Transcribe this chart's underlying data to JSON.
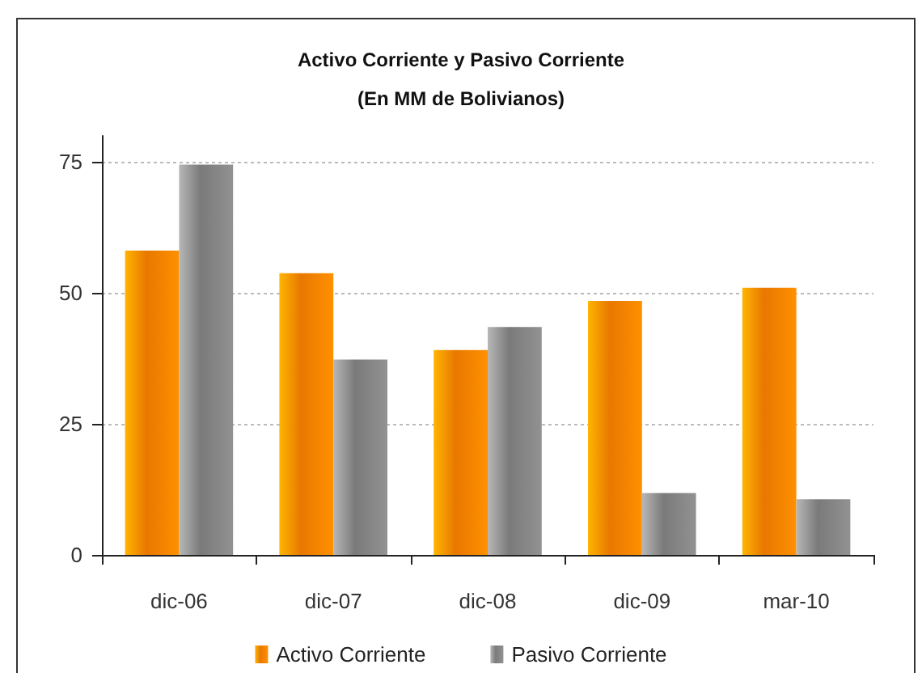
{
  "chart_data": {
    "type": "bar",
    "title": "Activo Corriente y Pasivo Corriente",
    "subtitle": "(En MM de Bolivianos)",
    "categories": [
      "dic-06",
      "dic-07",
      "dic-08",
      "dic-09",
      "mar-10"
    ],
    "series": [
      {
        "name": "Activo Corriente",
        "color": "#e87800",
        "values": [
          58.1,
          53.8,
          39.1,
          48.5,
          51.0
        ]
      },
      {
        "name": "Pasivo Corriente",
        "color": "#7a7a7a",
        "values": [
          74.5,
          37.3,
          43.5,
          11.8,
          10.6
        ]
      }
    ],
    "ylim": [
      0,
      80
    ],
    "yticks": [
      0,
      25,
      50,
      75
    ],
    "grid": "y",
    "legend": "bottom"
  }
}
